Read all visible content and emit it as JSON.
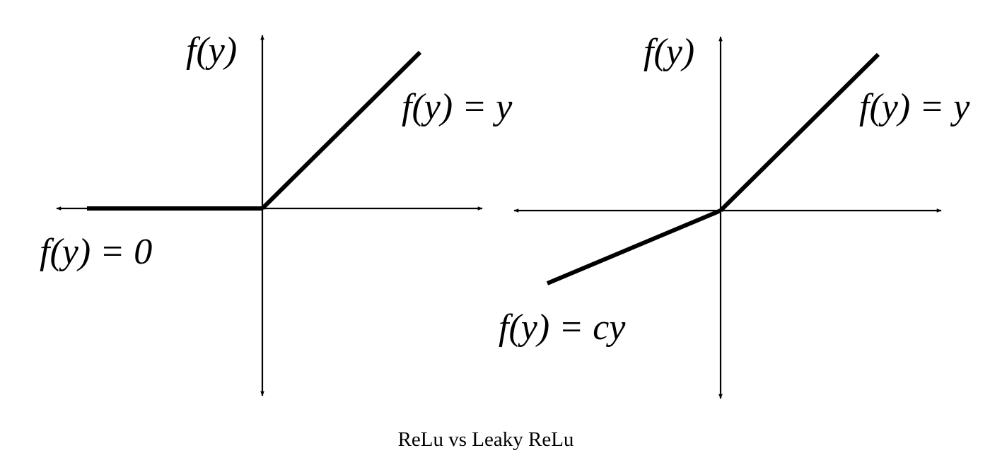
{
  "caption": "ReLu vs Leaky ReLu",
  "panels": [
    {
      "name": "ReLu",
      "y_axis_label": "f(y)",
      "positive_branch_label": "f(y) = y",
      "negative_branch_label": "f(y) = 0"
    },
    {
      "name": "Leaky ReLu",
      "y_axis_label": "f(y)",
      "positive_branch_label": "f(y) = y",
      "negative_branch_label": "f(y) = cy"
    }
  ],
  "colors": {
    "ink": "#000000",
    "background": "#ffffff"
  }
}
